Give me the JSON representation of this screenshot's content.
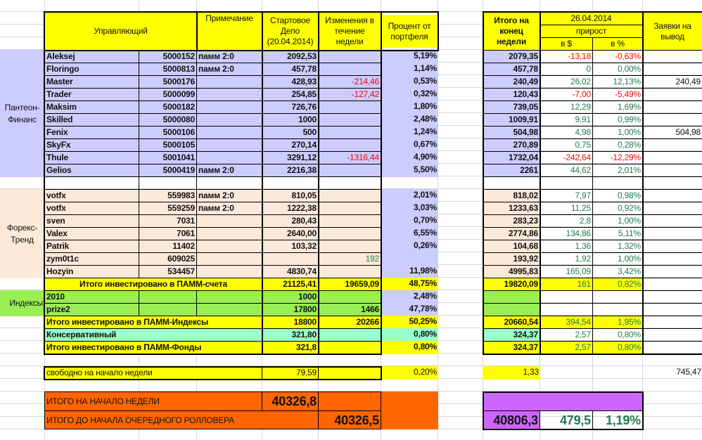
{
  "header": {
    "manager": "Управляющий",
    "note": "Примечание",
    "start_depo": "Стартовое Депо (20.04.2014)",
    "changes": "Изменения в течение недели",
    "percent": "Процент от портфеля",
    "end_total": "Итого на конец недели",
    "date": "26.04.2014",
    "growth": "прирост",
    "growth_usd": "в $",
    "growth_pct": "в %",
    "withdraw": "Заявки на вывод"
  },
  "groups": {
    "pantheon": "Пантеон-Финанс",
    "forex": "Форекс-Тренд",
    "indices": "Индексы"
  },
  "colors": {
    "header": "#ffff00",
    "pantheon": "#ccccff",
    "forex": "#fde9d9",
    "indices": "#99ee55",
    "conservative": "#99ffcc",
    "grand_total": "#ff6600",
    "final": "#cc66ff",
    "negative": "#ff0000",
    "positive": "#1f7a4a"
  },
  "pantheon": [
    {
      "name": "Aleksej",
      "id": "5000152",
      "note": "памм 2:0",
      "start": "2092,53",
      "change": "",
      "pct": "5,19%",
      "end": "2079,35",
      "gain_usd": "-13,18",
      "gain_pct": "-0,63%",
      "gain_sign": "neg",
      "withdraw": ""
    },
    {
      "name": "Floringo",
      "id": "5000813",
      "note": "памм 2:0",
      "start": "457,78",
      "change": "",
      "pct": "1,14%",
      "end": "457,78",
      "gain_usd": "0",
      "gain_pct": "0,00%",
      "gain_sign": "pos",
      "withdraw": ""
    },
    {
      "name": "Master",
      "id": "5000176",
      "note": "",
      "start": "428,93",
      "change": "-214,46",
      "change_sign": "neg",
      "pct": "0,53%",
      "end": "240,49",
      "gain_usd": "26,02",
      "gain_pct": "12,13%",
      "gain_sign": "pos",
      "withdraw": "240,49"
    },
    {
      "name": "Trader",
      "id": "5000099",
      "note": "",
      "start": "254,85",
      "change": "-127,42",
      "change_sign": "neg",
      "pct": "0,32%",
      "end": "120,43",
      "gain_usd": "-7,00",
      "gain_pct": "-5,49%",
      "gain_sign": "neg",
      "withdraw": ""
    },
    {
      "name": "Maksim",
      "id": "5000182",
      "note": "",
      "start": "726,76",
      "change": "",
      "pct": "1,80%",
      "end": "739,05",
      "gain_usd": "12,29",
      "gain_pct": "1,69%",
      "gain_sign": "pos",
      "withdraw": ""
    },
    {
      "name": "Skilled",
      "id": "5000080",
      "note": "",
      "start": "1000",
      "change": "",
      "pct": "2,48%",
      "end": "1009,91",
      "gain_usd": "9,91",
      "gain_pct": "0,99%",
      "gain_sign": "pos",
      "withdraw": ""
    },
    {
      "name": "Fenix",
      "id": "5000106",
      "note": "",
      "start": "500",
      "change": "",
      "pct": "1,24%",
      "end": "504,98",
      "gain_usd": "4,98",
      "gain_pct": "1,00%",
      "gain_sign": "pos",
      "withdraw": "504,98"
    },
    {
      "name": "SkyFx",
      "id": "5000105",
      "note": "",
      "start": "270,14",
      "change": "",
      "pct": "0,67%",
      "end": "270,89",
      "gain_usd": "0,75",
      "gain_pct": "0,28%",
      "gain_sign": "pos",
      "withdraw": ""
    },
    {
      "name": "Thule",
      "id": "5001041",
      "note": "",
      "start": "3291,12",
      "change": "-1316,44",
      "change_sign": "neg",
      "pct": "4,90%",
      "end": "1732,04",
      "gain_usd": "-242,64",
      "gain_pct": "-12,29%",
      "gain_sign": "neg",
      "withdraw": ""
    },
    {
      "name": "Gelios",
      "id": "5000419",
      "note": "памм 2:0",
      "start": "2216,38",
      "change": "",
      "pct": "5,50%",
      "end": "2261",
      "gain_usd": "44,62",
      "gain_pct": "2,01%",
      "gain_sign": "pos",
      "withdraw": ""
    }
  ],
  "forex": [
    {
      "name": "votfx",
      "id": "559983",
      "note": "памм 2:0",
      "start": "810,05",
      "change": "",
      "pct": "2,01%",
      "end": "818,02",
      "gain_usd": "7,97",
      "gain_pct": "0,98%",
      "gain_sign": "pos",
      "withdraw": ""
    },
    {
      "name": "votfx",
      "id": "559259",
      "note": "памм 2:0",
      "start": "1222,38",
      "change": "",
      "pct": "3,03%",
      "end": "1233,63",
      "gain_usd": "11,25",
      "gain_pct": "0,92%",
      "gain_sign": "pos",
      "withdraw": ""
    },
    {
      "name": "sven",
      "id": "7031",
      "note": "",
      "start": "280,43",
      "change": "",
      "pct": "0,70%",
      "end": "283,23",
      "gain_usd": "2,8",
      "gain_pct": "1,00%",
      "gain_sign": "pos",
      "withdraw": ""
    },
    {
      "name": "Valex",
      "id": "7061",
      "note": "",
      "start": "2640,00",
      "change": "",
      "pct": "6,55%",
      "end": "2774,86",
      "gain_usd": "134,86",
      "gain_pct": "5,11%",
      "gain_sign": "pos",
      "withdraw": ""
    },
    {
      "name": "Patrik",
      "id": "11402",
      "note": "",
      "start": "103,32",
      "change": "",
      "pct": "0,26%",
      "end": "104,68",
      "gain_usd": "1,36",
      "gain_pct": "1,32%",
      "gain_sign": "pos",
      "withdraw": ""
    },
    {
      "name": "zym0t1c",
      "id": "609025",
      "note": "",
      "start": "",
      "change": "192",
      "change_sign": "pos",
      "pct": "",
      "end": "193,92",
      "gain_usd": "1,92",
      "gain_pct": "1,00%",
      "gain_sign": "pos",
      "withdraw": ""
    },
    {
      "name": "Hozyin",
      "id": "534457",
      "note": "",
      "start": "4830,74",
      "change": "",
      "pct": "11,98%",
      "end": "4995,83",
      "gain_usd": "165,09",
      "gain_pct": "3,42%",
      "gain_sign": "pos",
      "withdraw": ""
    }
  ],
  "total_pamm": {
    "label": "Итого инвестировано в ПАММ-счета",
    "start": "21125,41",
    "change": "19659,09",
    "pct": "48,75%",
    "end": "19820,09",
    "gain_usd": "161",
    "gain_pct": "0,82%"
  },
  "indices": [
    {
      "name": "2010",
      "start": "1000",
      "change": "",
      "pct": "2,48%"
    },
    {
      "name": "prize2",
      "start": "17800",
      "change": "1466",
      "pct": "47,78%"
    }
  ],
  "total_indices": {
    "label": "Итого инвестировано в ПАММ-Индексы",
    "start": "18800",
    "change": "20266",
    "pct": "50,25%",
    "end": "20660,54",
    "gain_usd": "394,54",
    "gain_pct": "1,95%"
  },
  "conservative": {
    "label": "Консервативный",
    "start": "321,80",
    "pct": "0,80%",
    "end": "324,37",
    "gain_usd": "2,57",
    "gain_pct": "0,80%"
  },
  "total_funds": {
    "label": "Итого инвестировано в ПАММ-Фонды",
    "start": "321,8",
    "pct": "0,80%",
    "end": "324,37",
    "gain_usd": "2,57",
    "gain_pct": "0,80%"
  },
  "free": {
    "label": "свободно на начало недели",
    "start": "79,59",
    "pct": "0,20%",
    "end": "1,33",
    "withdraw_total": "745,47"
  },
  "grand": {
    "start_label": "ИТОГО НА НАЧАЛО НЕДЕЛИ",
    "start_value": "40326,8",
    "rollover_label": "ИТОГО ДО НАЧАЛА ОЧЕРЕДНОГО РОЛЛОВЕРА",
    "rollover_value": "40326,5",
    "end_value": "40806,3",
    "gain_usd": "479,5",
    "gain_pct": "1,19%"
  }
}
